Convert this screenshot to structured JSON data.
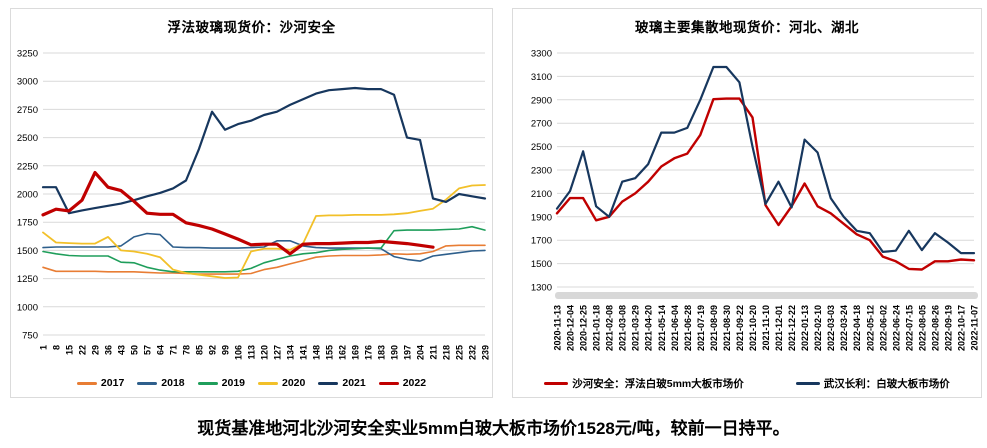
{
  "caption": "现货基准地河北沙河安全实业5mm白玻大板市场价1528元/吨，较前一日持平。",
  "chart_data": [
    {
      "type": "line",
      "title": "浮法玻璃现货价：沙河安全",
      "xlabel": "",
      "ylabel": "",
      "ylim": [
        750,
        3250
      ],
      "ystep": 250,
      "grid": true,
      "legend_position": "bottom",
      "categories": [
        1,
        8,
        15,
        22,
        29,
        36,
        43,
        50,
        57,
        64,
        71,
        78,
        85,
        92,
        99,
        106,
        113,
        120,
        127,
        134,
        141,
        148,
        155,
        162,
        169,
        176,
        183,
        190,
        197,
        204,
        211,
        218,
        225,
        232,
        239
      ],
      "series": [
        {
          "name": "2017",
          "color": "#E87D34",
          "width": 1.6,
          "values": [
            1350,
            1315,
            1315,
            1315,
            1315,
            1310,
            1310,
            1310,
            1305,
            1300,
            1300,
            1295,
            1290,
            1290,
            1290,
            1290,
            1295,
            1330,
            1350,
            1380,
            1410,
            1440,
            1450,
            1455,
            1455,
            1455,
            1460,
            1470,
            1465,
            1470,
            1490,
            1540,
            1545,
            1545,
            1545
          ]
        },
        {
          "name": "2018",
          "color": "#2E5F8C",
          "width": 1.6,
          "values": [
            1525,
            1530,
            1530,
            1530,
            1530,
            1530,
            1540,
            1620,
            1650,
            1640,
            1530,
            1525,
            1525,
            1520,
            1520,
            1520,
            1525,
            1530,
            1585,
            1585,
            1540,
            1525,
            1520,
            1520,
            1520,
            1520,
            1515,
            1445,
            1420,
            1405,
            1450,
            1465,
            1480,
            1495,
            1500
          ]
        },
        {
          "name": "2019",
          "color": "#1F9E5B",
          "width": 1.6,
          "values": [
            1490,
            1470,
            1455,
            1450,
            1450,
            1450,
            1395,
            1390,
            1350,
            1325,
            1310,
            1310,
            1310,
            1310,
            1310,
            1315,
            1340,
            1390,
            1420,
            1450,
            1470,
            1480,
            1500,
            1510,
            1515,
            1520,
            1520,
            1675,
            1680,
            1680,
            1680,
            1685,
            1690,
            1710,
            1680
          ]
        },
        {
          "name": "2020",
          "color": "#F2C029",
          "width": 1.8,
          "values": [
            1660,
            1570,
            1565,
            1560,
            1560,
            1620,
            1500,
            1490,
            1470,
            1440,
            1330,
            1300,
            1285,
            1270,
            1255,
            1260,
            1490,
            1515,
            1515,
            1505,
            1560,
            1805,
            1810,
            1810,
            1815,
            1815,
            1815,
            1820,
            1830,
            1850,
            1870,
            1950,
            2050,
            2075,
            2080
          ]
        },
        {
          "name": "2021",
          "color": "#17375E",
          "width": 2.2,
          "values": [
            2060,
            2060,
            1830,
            1855,
            1875,
            1895,
            1915,
            1945,
            1980,
            2010,
            2050,
            2120,
            2400,
            2730,
            2570,
            2620,
            2650,
            2700,
            2730,
            2790,
            2840,
            2890,
            2920,
            2930,
            2940,
            2930,
            2930,
            2880,
            2500,
            2480,
            1960,
            1930,
            2000,
            1980,
            1960
          ]
        },
        {
          "name": "2022",
          "color": "#C00000",
          "width": 3.2,
          "values": [
            1815,
            1865,
            1850,
            1945,
            2190,
            2060,
            2030,
            1935,
            1830,
            1820,
            1820,
            1745,
            1720,
            1690,
            1645,
            1600,
            1550,
            1555,
            1555,
            1470,
            1555,
            1560,
            1560,
            1565,
            1570,
            1570,
            1580,
            1570,
            1560,
            1545,
            1528,
            null,
            null,
            null,
            null
          ]
        }
      ]
    },
    {
      "type": "line",
      "title": "玻璃主要集散地现货价：河北、湖北",
      "xlabel": "",
      "ylabel": "",
      "ylim": [
        1300,
        3300
      ],
      "ystep": 200,
      "grid": true,
      "legend_position": "bottom",
      "categories": [
        "2020-11-13",
        "2020-12-04",
        "2020-12-25",
        "2021-01-18",
        "2021-02-08",
        "2021-03-08",
        "2021-03-29",
        "2021-04-20",
        "2021-05-14",
        "2021-06-04",
        "2021-06-28",
        "2021-07-19",
        "2021-08-09",
        "2021-08-30",
        "2021-09-22",
        "2021-10-20",
        "2021-11-10",
        "2021-12-01",
        "2021-12-22",
        "2022-01-13",
        "2022-02-10",
        "2022-03-03",
        "2022-03-24",
        "2022-04-18",
        "2022-05-12",
        "2022-06-02",
        "2022-06-24",
        "2022-07-15",
        "2022-08-05",
        "2022-08-26",
        "2022-09-19",
        "2022-10-17",
        "2022-11-07"
      ],
      "series": [
        {
          "name": "沙河安全：浮法白玻5mm大板市场价",
          "color": "#C00000",
          "width": 2.4,
          "values": [
            1930,
            2060,
            2060,
            1870,
            1900,
            2030,
            2100,
            2200,
            2330,
            2400,
            2440,
            2600,
            2905,
            2910,
            2910,
            2750,
            2000,
            1830,
            1990,
            2185,
            1990,
            1930,
            1840,
            1750,
            1700,
            1560,
            1520,
            1455,
            1450,
            1520,
            1520,
            1535,
            1528
          ]
        },
        {
          "name": "武汉长利：白玻大板市场价",
          "color": "#17375E",
          "width": 2.2,
          "values": [
            1970,
            2120,
            2460,
            1990,
            1900,
            2200,
            2230,
            2350,
            2620,
            2620,
            2660,
            2900,
            3180,
            3180,
            3050,
            2500,
            2010,
            2200,
            1980,
            2560,
            2450,
            2060,
            1900,
            1780,
            1760,
            1600,
            1610,
            1780,
            1615,
            1760,
            1680,
            1590,
            1590
          ]
        }
      ]
    }
  ]
}
